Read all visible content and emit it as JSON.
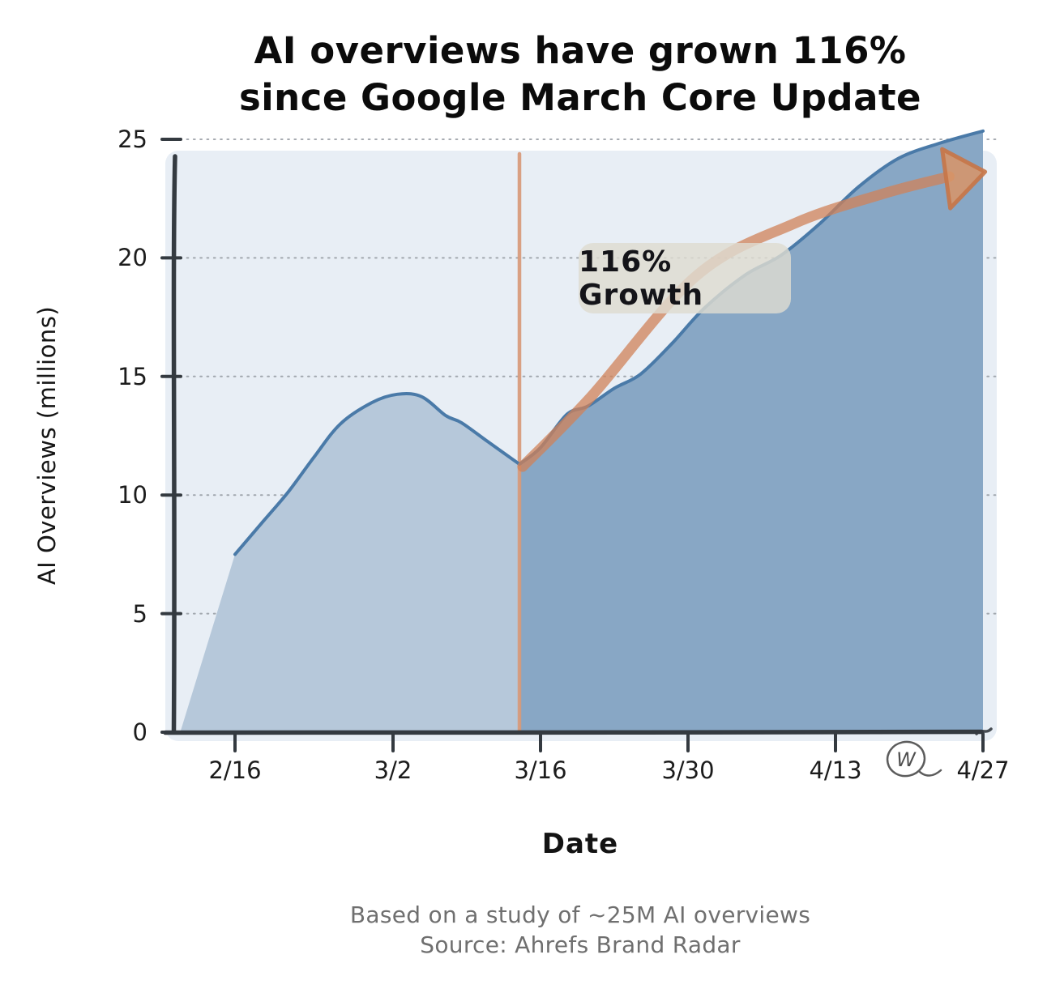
{
  "title": {
    "line1": "AI overviews have grown 116%",
    "line2": "since Google March Core Update"
  },
  "axes": {
    "x_label": "Date",
    "y_label": "AI Overviews (millions)",
    "x_ticks": [
      {
        "label": "2/16",
        "day": 0
      },
      {
        "label": "3/2",
        "day": 15
      },
      {
        "label": "3/16",
        "day": 29
      },
      {
        "label": "3/30",
        "day": 43
      },
      {
        "label": "4/13",
        "day": 57
      },
      {
        "label": "4/27",
        "day": 71
      }
    ],
    "y_ticks": [
      0,
      5,
      10,
      15,
      20,
      25
    ]
  },
  "annotation": {
    "label": "116% Growth"
  },
  "watermark": {
    "letter": "W"
  },
  "footer": {
    "line1": "Based on a study of ~25M AI overviews",
    "line2": "Source: Ahrefs Brand Radar"
  },
  "colors": {
    "plot_bg": "#e8eef5",
    "area_pre_update": "#b6c8da",
    "area_post_update": "#88a7c5",
    "line": "#4a7aa8",
    "axis": "#343a40",
    "grid": "#8a9097",
    "core_update_line": "#d89a7a",
    "arrow": "rgba(208,130,88,0.75)",
    "arrow_head_fill": "rgba(217,148,102,0.85)",
    "arrow_head_stroke": "rgba(198,118,72,0.9)",
    "watermark": "#5c5c5c"
  },
  "chart_data": {
    "type": "area",
    "title": "AI overviews have grown 116% since Google March Core Update",
    "xlabel": "Date",
    "ylabel": "AI Overviews (millions)",
    "ylim": [
      0,
      25
    ],
    "x_unit": "days since 2/16",
    "grid": true,
    "legend": false,
    "x_tick_labels": [
      "2/16",
      "3/2",
      "3/16",
      "3/30",
      "4/13",
      "4/27"
    ],
    "x_tick_days": [
      0,
      15,
      29,
      43,
      57,
      71
    ],
    "baseline_start_day": -5.2,
    "core_update_line_day": 27,
    "series": [
      {
        "name": "AI Overviews (millions)",
        "points": [
          {
            "day": 0,
            "value": 7.5
          },
          {
            "day": 2.5,
            "value": 8.8
          },
          {
            "day": 5,
            "value": 10.1
          },
          {
            "day": 7.5,
            "value": 11.6
          },
          {
            "day": 10,
            "value": 13.0
          },
          {
            "day": 13,
            "value": 13.9
          },
          {
            "day": 15.4,
            "value": 14.25
          },
          {
            "day": 17.7,
            "value": 14.15
          },
          {
            "day": 20,
            "value": 13.35
          },
          {
            "day": 21.5,
            "value": 13.05
          },
          {
            "day": 24,
            "value": 12.25
          },
          {
            "day": 27,
            "value": 11.3
          },
          {
            "day": 29,
            "value": 12.0
          },
          {
            "day": 31.5,
            "value": 13.4
          },
          {
            "day": 33.5,
            "value": 13.75
          },
          {
            "day": 36,
            "value": 14.5
          },
          {
            "day": 38.5,
            "value": 15.1
          },
          {
            "day": 41.5,
            "value": 16.4
          },
          {
            "day": 44.6,
            "value": 17.9
          },
          {
            "day": 48.5,
            "value": 19.3
          },
          {
            "day": 51.8,
            "value": 20.1
          },
          {
            "day": 55.4,
            "value": 21.4
          },
          {
            "day": 59.2,
            "value": 23.0
          },
          {
            "day": 63,
            "value": 24.2
          },
          {
            "day": 67,
            "value": 24.85
          },
          {
            "day": 71,
            "value": 25.35
          }
        ]
      }
    ],
    "annotations": {
      "growth_label": {
        "text": "116% Growth",
        "center_day": 42.8,
        "center_value": 19.2
      },
      "arrow": {
        "points": [
          {
            "day": 27.3,
            "value": 11.2
          },
          {
            "day": 33.8,
            "value": 14.15
          },
          {
            "day": 43.8,
            "value": 19.25
          },
          {
            "day": 53.1,
            "value": 21.45
          },
          {
            "day": 61.5,
            "value": 22.7
          },
          {
            "day": 67.8,
            "value": 23.43
          }
        ],
        "tip": {
          "day": 71.2,
          "value": 23.63
        }
      }
    }
  }
}
